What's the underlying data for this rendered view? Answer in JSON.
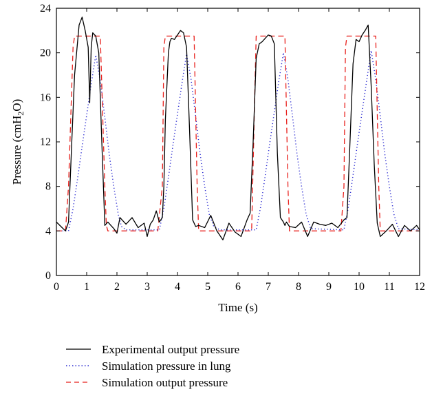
{
  "chart_data": {
    "type": "line",
    "title": "",
    "xlabel": "Time (s)",
    "ylabel_prefix": "Pressure (cmH",
    "ylabel_sub": "2",
    "ylabel_suffix": "O)",
    "xlim": [
      0,
      12
    ],
    "ylim": [
      0,
      24
    ],
    "xticks": [
      0,
      1,
      2,
      3,
      4,
      5,
      6,
      7,
      8,
      9,
      10,
      11,
      12
    ],
    "yticks": [
      0,
      4,
      8,
      12,
      16,
      20,
      24
    ],
    "grid": false,
    "legend_position": "bottom",
    "series": [
      {
        "name": "Experimental output pressure",
        "color": "#000000",
        "style": "solid",
        "x": [
          0,
          0.15,
          0.3,
          0.4,
          0.5,
          0.6,
          0.75,
          0.85,
          0.95,
          1.05,
          1.1,
          1.15,
          1.2,
          1.3,
          1.4,
          1.5,
          1.6,
          1.7,
          1.8,
          1.9,
          2.0,
          2.1,
          2.3,
          2.5,
          2.7,
          2.9,
          3.0,
          3.1,
          3.2,
          3.3,
          3.4,
          3.5,
          3.55,
          3.6,
          3.7,
          3.75,
          3.8,
          3.9,
          4.0,
          4.1,
          4.2,
          4.3,
          4.4,
          4.5,
          4.55,
          4.6,
          4.7,
          4.9,
          5.1,
          5.3,
          5.5,
          5.7,
          5.9,
          6.1,
          6.3,
          6.4,
          6.5,
          6.6,
          6.7,
          6.8,
          6.9,
          7.0,
          7.1,
          7.2,
          7.3,
          7.4,
          7.5,
          7.55,
          7.6,
          7.7,
          7.9,
          8.1,
          8.3,
          8.5,
          8.7,
          8.9,
          9.1,
          9.3,
          9.5,
          9.6,
          9.7,
          9.8,
          9.9,
          10.0,
          10.1,
          10.2,
          10.3,
          10.4,
          10.5,
          10.6,
          10.7,
          10.9,
          11.1,
          11.3,
          11.5,
          11.7,
          11.9,
          12.0
        ],
        "y": [
          4.8,
          4.4,
          4.0,
          4.8,
          11.5,
          18.0,
          22.5,
          23.2,
          22.0,
          20.5,
          15.5,
          20.5,
          21.8,
          21.5,
          20.0,
          12.0,
          4.5,
          4.8,
          4.5,
          4.2,
          3.8,
          5.2,
          4.6,
          5.2,
          4.3,
          4.7,
          3.5,
          4.6,
          5.0,
          5.8,
          4.8,
          5.2,
          8.0,
          14.0,
          20.0,
          21.0,
          21.3,
          21.2,
          21.6,
          22.0,
          21.8,
          20.5,
          13.0,
          5.0,
          4.7,
          4.4,
          4.5,
          4.3,
          5.4,
          4.0,
          3.2,
          4.7,
          3.9,
          3.5,
          5.0,
          5.6,
          12.0,
          19.5,
          20.8,
          21.0,
          21.3,
          21.6,
          21.5,
          20.8,
          11.0,
          5.2,
          4.8,
          4.5,
          4.8,
          4.4,
          4.3,
          4.8,
          3.5,
          4.8,
          4.6,
          4.5,
          4.7,
          4.3,
          5.0,
          5.2,
          12.0,
          19.0,
          21.2,
          21.0,
          21.6,
          22.0,
          22.5,
          17.0,
          10.0,
          4.7,
          3.5,
          4.0,
          4.6,
          3.5,
          4.5,
          4.0,
          4.5,
          4.1
        ]
      },
      {
        "name": "Simulation pressure in lung",
        "color": "#2a2ad0",
        "style": "dotted",
        "x": [
          0,
          0.4,
          0.55,
          0.7,
          0.85,
          1.0,
          1.15,
          1.3,
          1.45,
          1.6,
          1.75,
          1.9,
          2.05,
          2.15,
          2.3,
          3.4,
          3.55,
          3.7,
          3.85,
          4.0,
          4.15,
          4.3,
          4.45,
          4.6,
          4.75,
          4.9,
          5.05,
          5.2,
          5.4,
          6.6,
          6.75,
          6.9,
          7.05,
          7.2,
          7.35,
          7.5,
          7.65,
          7.8,
          7.95,
          8.1,
          8.25,
          8.4,
          9.5,
          9.65,
          9.8,
          9.95,
          10.1,
          10.25,
          10.4,
          10.55,
          10.7,
          10.85,
          11.0,
          11.15,
          11.3,
          12.0
        ],
        "y": [
          4.0,
          4.0,
          6.0,
          8.7,
          11.6,
          14.4,
          17.2,
          19.8,
          17.5,
          14.2,
          10.8,
          7.9,
          5.4,
          4.4,
          4.1,
          4.1,
          6.0,
          8.8,
          11.7,
          14.5,
          17.3,
          19.9,
          17.6,
          14.3,
          10.9,
          8.0,
          5.5,
          4.4,
          4.1,
          4.1,
          6.2,
          9.0,
          11.9,
          14.7,
          17.5,
          20.0,
          17.6,
          14.3,
          10.9,
          8.0,
          5.5,
          4.2,
          4.1,
          6.2,
          9.0,
          11.9,
          14.7,
          17.5,
          20.2,
          17.6,
          14.3,
          10.9,
          8.0,
          5.5,
          4.2,
          4.1
        ]
      },
      {
        "name": "Simulation output pressure",
        "color": "#e8201c",
        "style": "dashed",
        "x": [
          0,
          0.3,
          0.4,
          0.55,
          0.6,
          1.45,
          1.6,
          1.65,
          1.7,
          3.35,
          3.5,
          3.55,
          3.6,
          4.55,
          4.65,
          4.7,
          6.45,
          6.55,
          6.6,
          6.65,
          7.55,
          7.65,
          7.7,
          9.4,
          9.5,
          9.55,
          9.6,
          10.55,
          10.65,
          10.7,
          12.0
        ],
        "y": [
          4.0,
          4.0,
          8.0,
          20.5,
          21.5,
          21.5,
          8.0,
          4.5,
          4.0,
          4.0,
          8.0,
          20.5,
          21.5,
          21.5,
          8.0,
          4.0,
          4.0,
          16.0,
          21.5,
          21.5,
          21.5,
          8.0,
          4.0,
          4.0,
          8.0,
          20.5,
          21.5,
          21.5,
          8.0,
          4.0,
          4.0
        ]
      }
    ]
  }
}
